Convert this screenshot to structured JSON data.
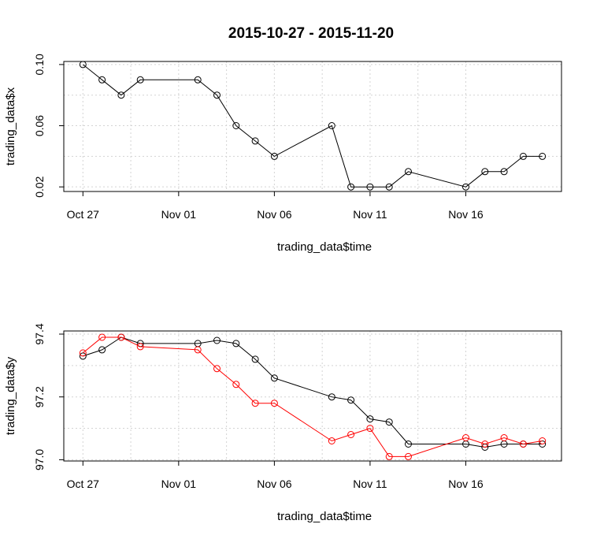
{
  "title": "2015-10-27 - 2015-11-20",
  "chart_data": [
    {
      "type": "line",
      "xlabel": "trading_data$time",
      "ylabel": "trading_data$x",
      "x_ticks": [
        "Oct 27",
        "Nov 01",
        "Nov 06",
        "Nov 11",
        "Nov 16"
      ],
      "x_tick_dates": [
        "2015-10-27",
        "2015-11-01",
        "2015-11-06",
        "2015-11-11",
        "2015-11-16"
      ],
      "y_ticks": [
        "0.02",
        "0.06",
        "0.10"
      ],
      "y_tick_values": [
        0.02,
        0.06,
        0.1
      ],
      "xlim": [
        "2015-10-26",
        "2015-11-21"
      ],
      "ylim": [
        0.017,
        0.102
      ],
      "grid": true,
      "series": [
        {
          "color": "#000000",
          "x": [
            "2015-10-27",
            "2015-10-28",
            "2015-10-29",
            "2015-10-30",
            "2015-11-02",
            "2015-11-03",
            "2015-11-04",
            "2015-11-05",
            "2015-11-06",
            "2015-11-09",
            "2015-11-10",
            "2015-11-11",
            "2015-11-12",
            "2015-11-13",
            "2015-11-16",
            "2015-11-17",
            "2015-11-18",
            "2015-11-19",
            "2015-11-20"
          ],
          "values": [
            0.1,
            0.09,
            0.08,
            0.09,
            0.09,
            0.08,
            0.06,
            0.05,
            0.04,
            0.06,
            0.02,
            0.02,
            0.02,
            0.03,
            0.02,
            0.03,
            0.03,
            0.04,
            0.04
          ]
        }
      ]
    },
    {
      "type": "line",
      "xlabel": "trading_data$time",
      "ylabel": "trading_data$y",
      "x_ticks": [
        "Oct 27",
        "Nov 01",
        "Nov 06",
        "Nov 11",
        "Nov 16"
      ],
      "x_tick_dates": [
        "2015-10-27",
        "2015-11-01",
        "2015-11-06",
        "2015-11-11",
        "2015-11-16"
      ],
      "y_ticks": [
        "97.0",
        "97.2",
        "97.4"
      ],
      "y_tick_values": [
        97.0,
        97.2,
        97.4
      ],
      "xlim": [
        "2015-10-26",
        "2015-11-21"
      ],
      "ylim": [
        96.996,
        97.41
      ],
      "grid": true,
      "series": [
        {
          "color": "#000000",
          "x": [
            "2015-10-27",
            "2015-10-28",
            "2015-10-29",
            "2015-10-30",
            "2015-11-02",
            "2015-11-03",
            "2015-11-04",
            "2015-11-05",
            "2015-11-06",
            "2015-11-09",
            "2015-11-10",
            "2015-11-11",
            "2015-11-12",
            "2015-11-13",
            "2015-11-16",
            "2015-11-17",
            "2015-11-18",
            "2015-11-19",
            "2015-11-20"
          ],
          "values": [
            97.33,
            97.35,
            97.39,
            97.37,
            97.37,
            97.38,
            97.37,
            97.32,
            97.26,
            97.2,
            97.19,
            97.13,
            97.12,
            97.05,
            97.05,
            97.04,
            97.05,
            97.05,
            97.05
          ]
        },
        {
          "color": "#ff0000",
          "x": [
            "2015-10-27",
            "2015-10-28",
            "2015-10-29",
            "2015-10-30",
            "2015-11-02",
            "2015-11-03",
            "2015-11-04",
            "2015-11-05",
            "2015-11-06",
            "2015-11-09",
            "2015-11-10",
            "2015-11-11",
            "2015-11-12",
            "2015-11-13",
            "2015-11-16",
            "2015-11-17",
            "2015-11-18",
            "2015-11-19",
            "2015-11-20"
          ],
          "values": [
            97.34,
            97.39,
            97.39,
            97.36,
            97.35,
            97.29,
            97.24,
            97.18,
            97.18,
            97.06,
            97.08,
            97.1,
            97.01,
            97.01,
            97.07,
            97.05,
            97.07,
            97.05,
            97.06
          ]
        }
      ]
    }
  ]
}
